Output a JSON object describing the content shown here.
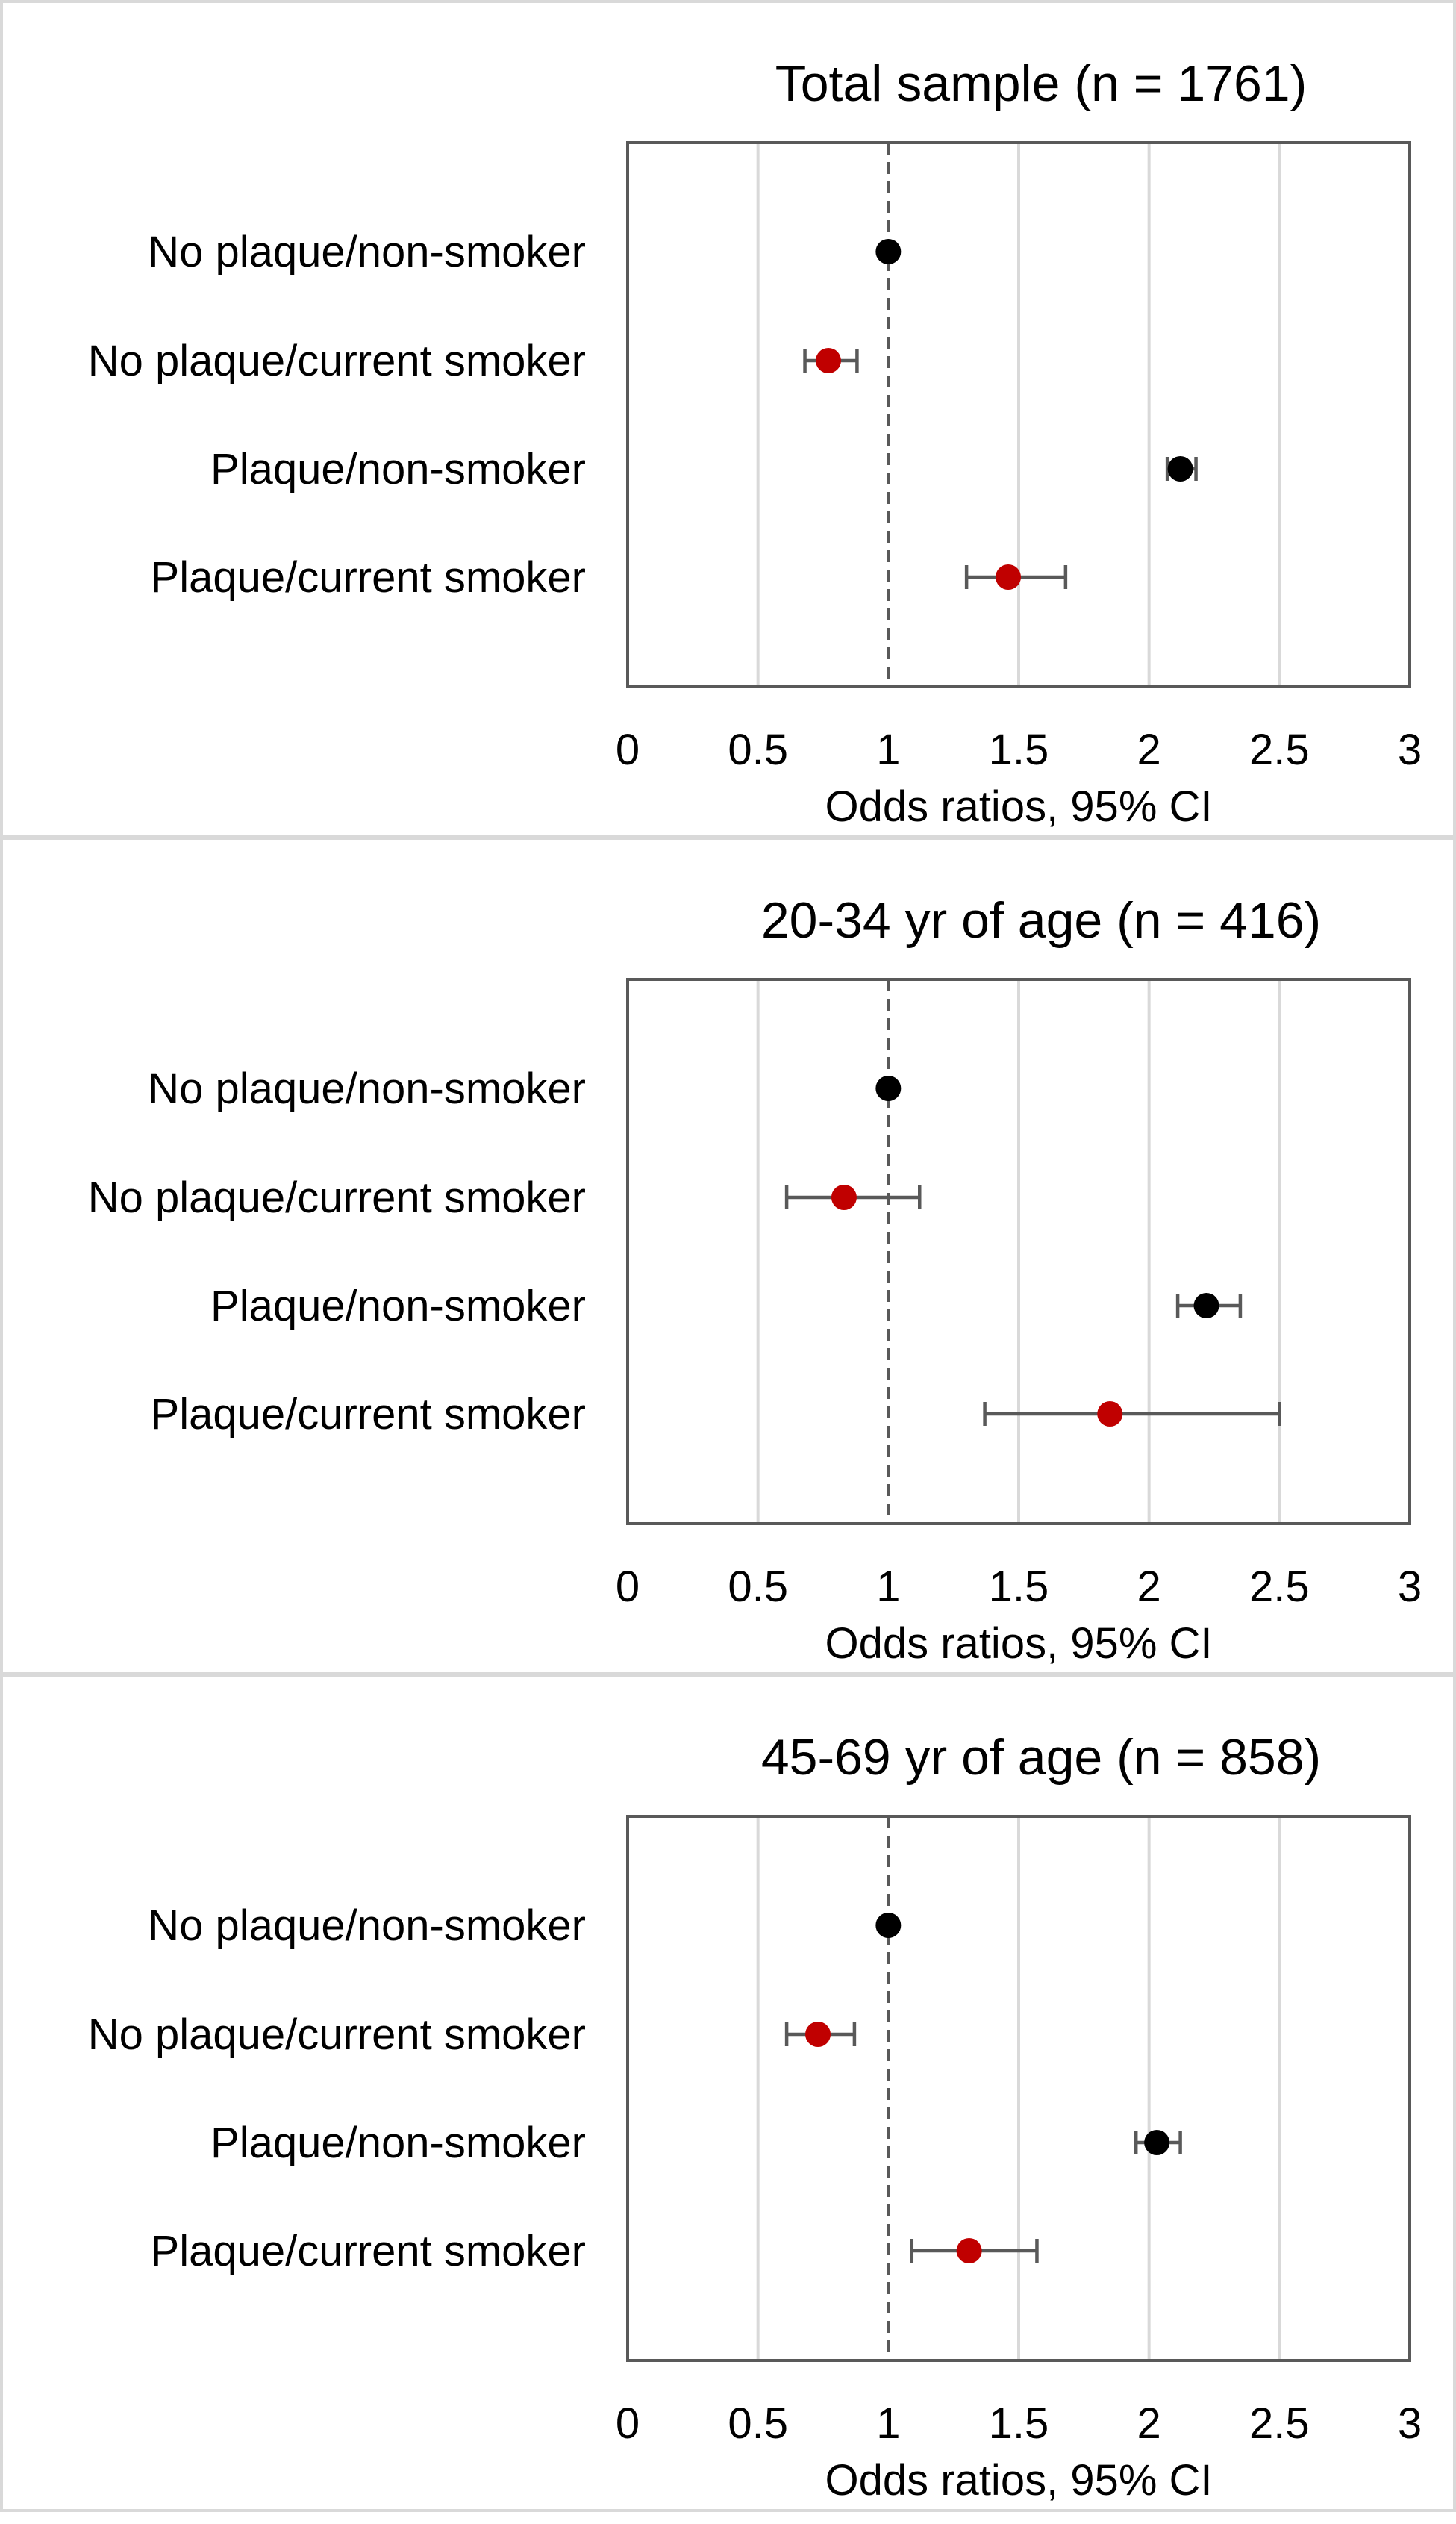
{
  "chart_data": [
    {
      "type": "scatter",
      "title": "Total sample (n = 1761)",
      "xlabel": "Odds ratios, 95% CI",
      "xlim": [
        0,
        3
      ],
      "xticks": [
        "0",
        "0.5",
        "1",
        "1.5",
        "2",
        "2.5",
        "3"
      ],
      "reference_line": 1,
      "grid": true,
      "categories": [
        "No plaque/non-smoker",
        "No plaque/current smoker",
        "Plaque/non-smoker",
        "Plaque/current smoker"
      ],
      "values": [
        1.0,
        0.77,
        2.12,
        1.46
      ],
      "ci_lower": [
        null,
        0.68,
        2.07,
        1.3
      ],
      "ci_upper": [
        null,
        0.88,
        2.18,
        1.68
      ],
      "point_colors": [
        "#000000",
        "#c00000",
        "#000000",
        "#c00000"
      ]
    },
    {
      "type": "scatter",
      "title": "20-34 yr of age (n = 416)",
      "xlabel": "Odds ratios, 95% CI",
      "xlim": [
        0,
        3
      ],
      "xticks": [
        "0",
        "0.5",
        "1",
        "1.5",
        "2",
        "2.5",
        "3"
      ],
      "reference_line": 1,
      "grid": true,
      "categories": [
        "No plaque/non-smoker",
        "No plaque/current smoker",
        "Plaque/non-smoker",
        "Plaque/current smoker"
      ],
      "values": [
        1.0,
        0.83,
        2.22,
        1.85
      ],
      "ci_lower": [
        null,
        0.61,
        2.11,
        1.37
      ],
      "ci_upper": [
        null,
        1.12,
        2.35,
        2.5
      ],
      "point_colors": [
        "#000000",
        "#c00000",
        "#000000",
        "#c00000"
      ]
    },
    {
      "type": "scatter",
      "title": "45-69 yr of age (n = 858)",
      "xlabel": "Odds ratios, 95% CI",
      "xlim": [
        0,
        3
      ],
      "xticks": [
        "0",
        "0.5",
        "1",
        "1.5",
        "2",
        "2.5",
        "3"
      ],
      "reference_line": 1,
      "grid": true,
      "categories": [
        "No plaque/non-smoker",
        "No plaque/current smoker",
        "Plaque/non-smoker",
        "Plaque/current smoker"
      ],
      "values": [
        1.0,
        0.73,
        2.03,
        1.31
      ],
      "ci_lower": [
        null,
        0.61,
        1.95,
        1.09
      ],
      "ci_upper": [
        null,
        0.87,
        2.12,
        1.57
      ],
      "point_colors": [
        "#000000",
        "#c00000",
        "#000000",
        "#c00000"
      ]
    }
  ]
}
